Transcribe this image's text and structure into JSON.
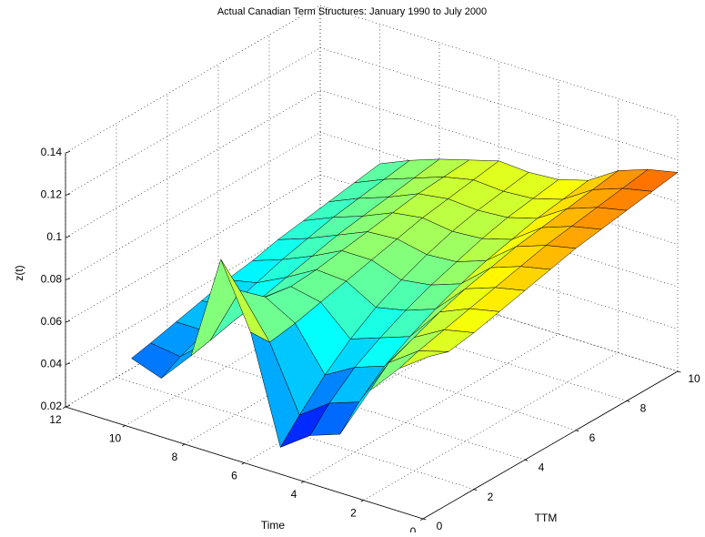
{
  "chart_data": {
    "type": "surface",
    "title": "Actual Canadian Term Structures: January 1990 to July 2000",
    "xlabel": "TTM",
    "ylabel": "Time",
    "zlabel": "z(t)",
    "colormap": "jet",
    "grid": true,
    "xlim": [
      0,
      10
    ],
    "xticks": [
      0,
      2,
      4,
      6,
      8,
      10
    ],
    "ylim": [
      0,
      12
    ],
    "yticks": [
      0,
      2,
      4,
      6,
      8,
      10,
      12
    ],
    "zlim": [
      0.02,
      0.14
    ],
    "zticks": [
      0.02,
      0.04,
      0.06,
      0.08,
      0.1,
      0.12,
      0.14
    ],
    "x": [
      0.25,
      1,
      2,
      3,
      4,
      5,
      6,
      7,
      8,
      9,
      10
    ],
    "y": [
      0,
      1,
      2,
      3,
      4,
      5,
      6,
      7,
      8,
      9,
      10
    ],
    "z": [
      [
        0.095,
        0.092,
        0.094,
        0.097,
        0.1,
        0.103,
        0.106,
        0.108,
        0.11,
        0.112,
        0.114
      ],
      [
        0.085,
        0.088,
        0.091,
        0.094,
        0.097,
        0.1,
        0.103,
        0.105,
        0.107,
        0.109,
        0.111
      ],
      [
        0.07,
        0.078,
        0.083,
        0.088,
        0.092,
        0.095,
        0.098,
        0.1,
        0.102,
        0.104,
        0.106
      ],
      [
        0.045,
        0.055,
        0.065,
        0.072,
        0.078,
        0.083,
        0.087,
        0.09,
        0.093,
        0.095,
        0.097
      ],
      [
        0.04,
        0.05,
        0.06,
        0.067,
        0.073,
        0.078,
        0.082,
        0.086,
        0.089,
        0.091,
        0.093
      ],
      [
        0.03,
        0.04,
        0.052,
        0.062,
        0.07,
        0.076,
        0.081,
        0.085,
        0.088,
        0.09,
        0.092
      ],
      [
        0.08,
        0.07,
        0.072,
        0.075,
        0.078,
        0.081,
        0.084,
        0.087,
        0.089,
        0.091,
        0.093
      ],
      [
        0.11,
        0.09,
        0.08,
        0.078,
        0.079,
        0.081,
        0.083,
        0.085,
        0.087,
        0.088,
        0.089
      ],
      [
        0.06,
        0.062,
        0.065,
        0.068,
        0.071,
        0.074,
        0.077,
        0.079,
        0.081,
        0.083,
        0.085
      ],
      [
        0.045,
        0.05,
        0.055,
        0.06,
        0.064,
        0.068,
        0.071,
        0.074,
        0.076,
        0.078,
        0.08
      ],
      [
        0.05,
        0.052,
        0.055,
        0.058,
        0.061,
        0.063,
        0.066,
        0.068,
        0.07,
        0.072,
        0.074
      ]
    ]
  }
}
